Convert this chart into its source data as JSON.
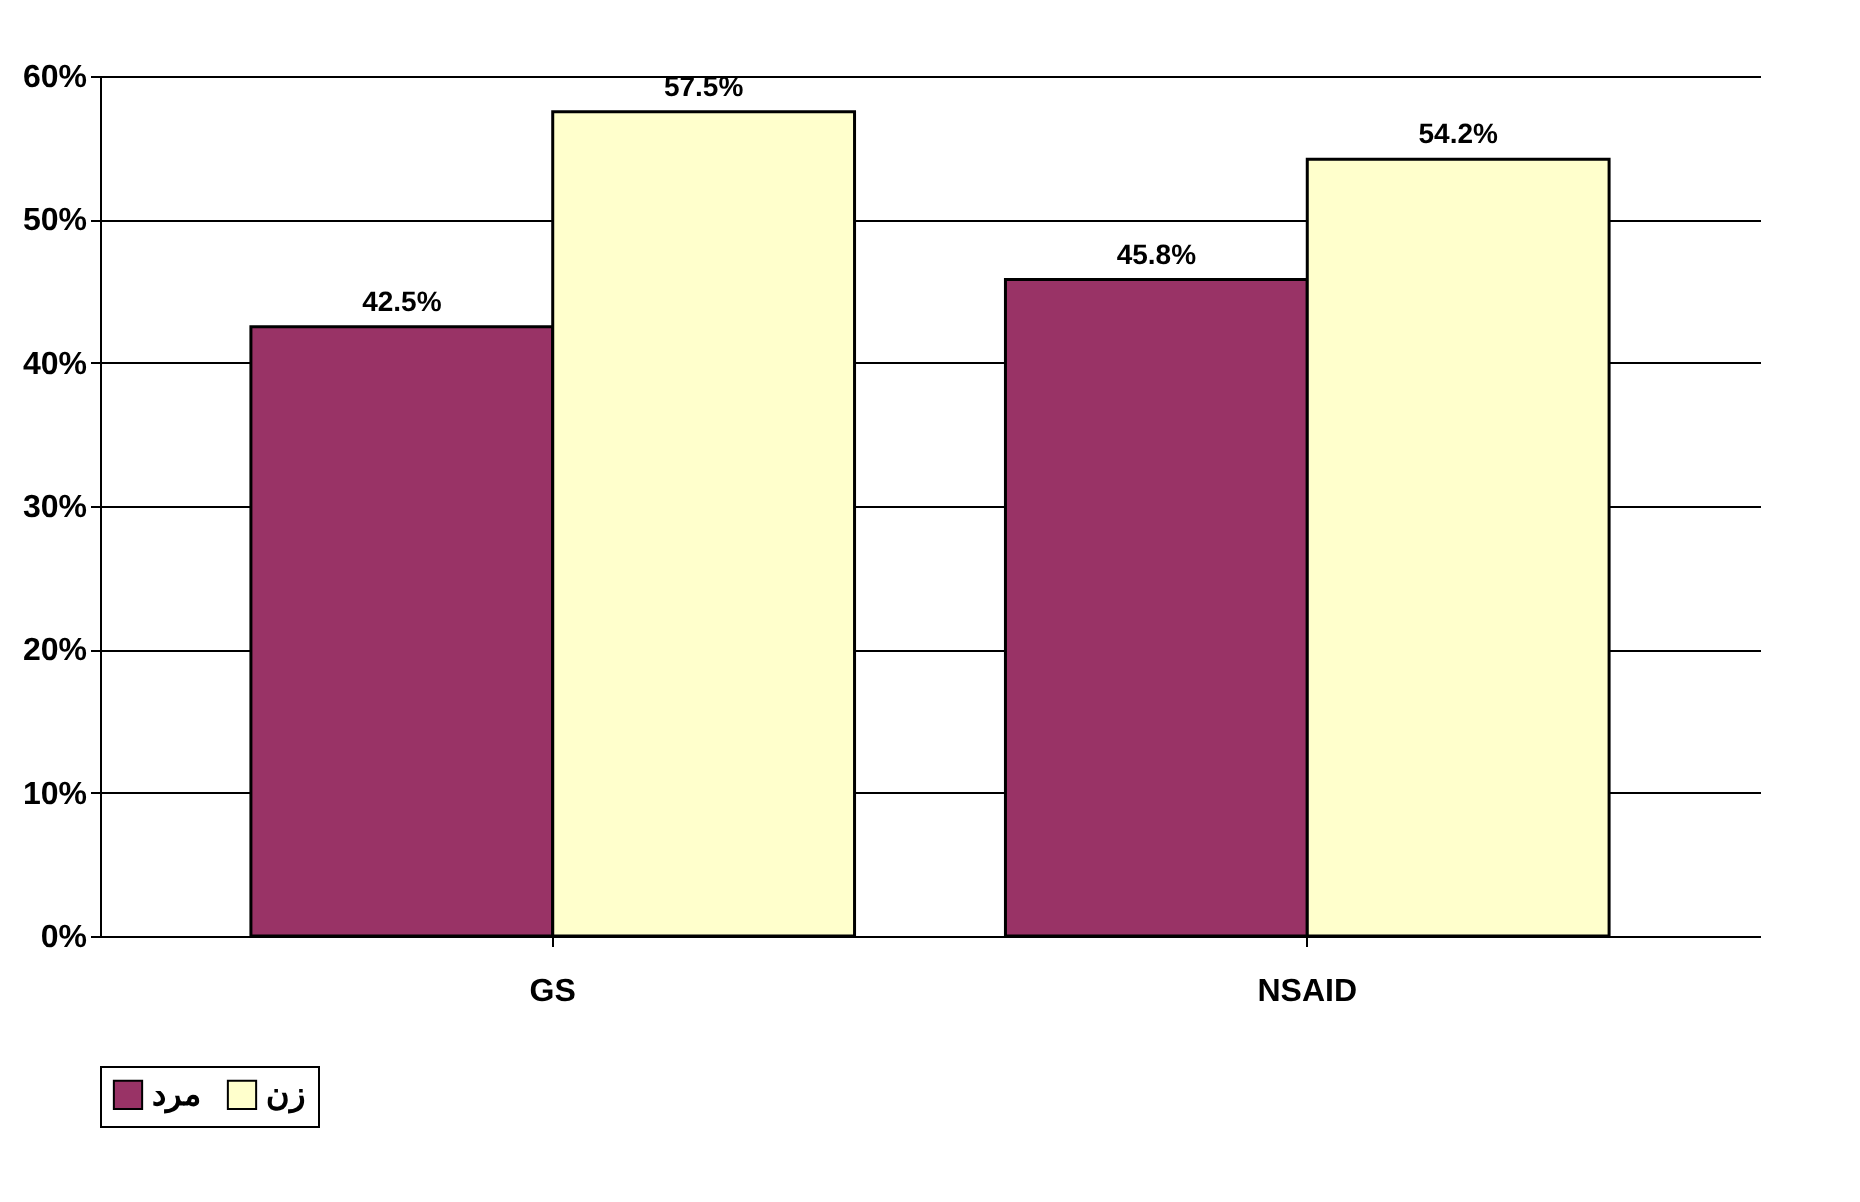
{
  "chart_data": {
    "type": "bar",
    "categories": [
      "GS",
      "NSAID"
    ],
    "series": [
      {
        "name": "مرد",
        "color": "#993366",
        "values": [
          42.5,
          45.8
        ],
        "value_labels": [
          "42.5%",
          "45.8%"
        ]
      },
      {
        "name": "زن",
        "color": "#ffffcc",
        "values": [
          57.5,
          54.2
        ],
        "value_labels": [
          "57.5%",
          "54.2%"
        ]
      }
    ],
    "ylim": [
      0,
      60
    ],
    "yticks": [
      {
        "value": 0,
        "label": "0%"
      },
      {
        "value": 10,
        "label": "10%"
      },
      {
        "value": 20,
        "label": "20%"
      },
      {
        "value": 30,
        "label": "30%"
      },
      {
        "value": 40,
        "label": "40%"
      },
      {
        "value": 50,
        "label": "50%"
      },
      {
        "value": 60,
        "label": "60%"
      }
    ],
    "grid": "y",
    "legend": "bottom"
  }
}
